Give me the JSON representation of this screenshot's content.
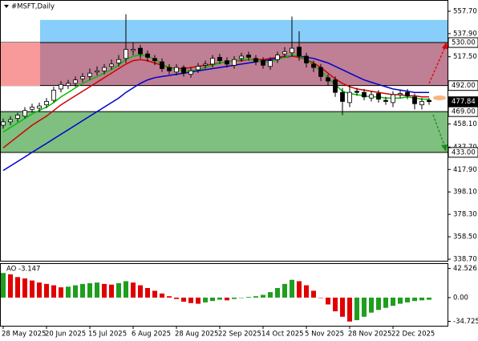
{
  "chart_data": {
    "type": "candlestick",
    "title": "#MSFT,Daily",
    "categories": [
      "28 May 2025",
      null,
      null,
      null,
      null,
      null,
      "20 Jun 2025",
      null,
      null,
      null,
      null,
      null,
      "15 Jul 2025",
      null,
      null,
      null,
      null,
      null,
      "6 Aug 2025",
      null,
      null,
      null,
      null,
      null,
      "28 Aug 2025",
      null,
      null,
      null,
      null,
      null,
      "22 Sep 2025",
      null,
      null,
      null,
      null,
      null,
      "14 Oct 2025",
      null,
      null,
      null,
      null,
      null,
      "5 Nov 2025",
      null,
      null,
      null,
      null,
      null,
      "28 Nov 2025",
      null,
      null,
      null,
      null,
      null,
      "22 Dec 2025",
      null,
      null,
      null,
      null,
      null
    ],
    "open": [
      457,
      460,
      463,
      465,
      471,
      472,
      475,
      479,
      489,
      492,
      494,
      498,
      500,
      504,
      505,
      509,
      512,
      516,
      523,
      525,
      520,
      516,
      513,
      508,
      504,
      508,
      502,
      506,
      510,
      511,
      517,
      514,
      510,
      516,
      519,
      516,
      514,
      509,
      515,
      520,
      521,
      526,
      518,
      511,
      508,
      499,
      497,
      486,
      477,
      487,
      486,
      481,
      485,
      479,
      477,
      484,
      486,
      482,
      475,
      479
    ],
    "high": [
      463,
      465,
      468,
      473,
      476,
      477,
      481,
      491,
      496,
      497,
      500,
      503,
      507,
      509,
      511,
      515,
      519,
      555,
      530,
      528,
      523,
      519,
      516,
      511,
      511,
      510,
      508,
      512,
      514,
      519,
      520,
      517,
      518,
      521,
      522,
      519,
      517,
      517,
      522,
      526,
      553,
      540,
      521,
      514,
      511,
      502,
      500,
      490,
      492,
      490,
      489,
      487,
      488,
      482,
      487,
      488,
      489,
      485,
      481,
      481
    ],
    "low": [
      454,
      457,
      460,
      463,
      468,
      469,
      472,
      477,
      486,
      489,
      491,
      495,
      497,
      501,
      502,
      506,
      509,
      512,
      519,
      516,
      513,
      510,
      504,
      502,
      501,
      500,
      499,
      503,
      507,
      508,
      511,
      508,
      507,
      513,
      514,
      510,
      507,
      506,
      512,
      517,
      518,
      514,
      508,
      504,
      496,
      492,
      482,
      466,
      473,
      483,
      479,
      478,
      477,
      475,
      473,
      481,
      480,
      471,
      471,
      475
    ],
    "close": [
      460,
      462,
      466,
      470,
      473,
      474,
      478,
      488,
      493,
      494,
      497,
      500,
      503,
      505,
      508,
      511,
      515,
      524,
      524,
      520,
      517,
      514,
      507,
      505,
      508,
      503,
      505,
      509,
      511,
      516,
      514,
      511,
      515,
      518,
      517,
      513,
      510,
      514,
      519,
      522,
      525,
      518,
      512,
      508,
      500,
      496,
      486,
      478,
      486,
      486,
      482,
      484,
      480,
      478,
      484,
      485,
      483,
      476,
      478,
      477.84
    ],
    "up_color": "#ffffff",
    "down_color": "#000000",
    "moving_averages": [
      {
        "color": "#0000cc",
        "values": [
          417,
          421,
          425,
          429,
          433,
          437,
          441,
          445,
          449,
          453,
          457,
          461,
          465,
          469,
          473,
          477,
          481,
          486,
          490,
          494,
          497,
          499,
          500,
          501,
          502,
          503,
          504,
          505,
          506,
          507,
          508,
          509,
          510,
          511,
          512,
          513,
          514,
          515,
          516,
          517,
          518,
          518,
          517,
          516,
          514,
          512,
          509,
          506,
          503,
          500,
          497,
          495,
          493,
          491,
          489,
          488,
          487,
          486,
          486,
          486
        ]
      },
      {
        "color": "#d00000",
        "values": [
          437,
          442,
          447,
          452,
          457,
          461,
          465,
          470,
          475,
          479,
          483,
          487,
          491,
          495,
          499,
          503,
          507,
          511,
          514,
          515,
          514,
          512,
          510,
          508,
          507,
          507,
          508,
          509,
          510,
          511,
          512,
          513,
          514,
          514,
          515,
          515,
          515,
          516,
          517,
          518,
          518,
          517,
          515,
          512,
          508,
          503,
          498,
          494,
          491,
          489,
          488,
          487,
          486,
          485,
          484,
          484,
          483,
          483,
          482,
          482
        ]
      },
      {
        "color": "#00c000",
        "values": [
          451,
          455,
          459,
          463,
          467,
          470,
          473,
          477,
          482,
          486,
          490,
          494,
          497,
          500,
          503,
          506,
          510,
          515,
          518,
          519,
          518,
          515,
          511,
          508,
          506,
          505,
          505,
          506,
          508,
          510,
          512,
          513,
          514,
          515,
          515,
          514,
          513,
          513,
          515,
          517,
          519,
          518,
          515,
          510,
          505,
          499,
          493,
          487,
          485,
          484,
          483,
          482,
          482,
          481,
          481,
          481,
          482,
          481,
          480,
          480
        ]
      }
    ],
    "ylim": [
      337.3,
      567.6
    ],
    "yticks": [
      {
        "value": 557.7,
        "label": "557.70"
      },
      {
        "value": 537.9,
        "label": "537.90"
      },
      {
        "value": 517.5,
        "label": "517.50"
      },
      {
        "value": 458.1,
        "label": "458.10"
      },
      {
        "value": 437.7,
        "label": "437.70"
      },
      {
        "value": 417.9,
        "label": "417.90"
      },
      {
        "value": 398.1,
        "label": "398.10"
      },
      {
        "value": 378.3,
        "label": "378.30"
      },
      {
        "value": 358.5,
        "label": "358.50"
      },
      {
        "value": 338.7,
        "label": "338.70"
      }
    ],
    "levels": [
      {
        "value": 530,
        "label": "530.00"
      },
      {
        "value": 492,
        "label": "492.00"
      },
      {
        "value": 469,
        "label": "469.00"
      },
      {
        "value": 433,
        "label": "433.00"
      }
    ],
    "current_price": {
      "value": 477.84,
      "label": "477.84"
    },
    "zones": [
      {
        "from": 530,
        "to": 550,
        "color": "#87cefa"
      },
      {
        "from": 492,
        "to": 530,
        "color": "#bf7f94"
      },
      {
        "from": 433,
        "to": 469,
        "color": "#7fbf7f"
      }
    ],
    "indicator": {
      "type": "histogram",
      "title": "AO -3.147",
      "values": [
        36,
        34,
        30,
        28,
        25,
        22,
        20,
        18,
        15,
        16,
        18,
        20,
        21,
        22,
        20,
        19,
        21,
        24,
        22,
        18,
        14,
        10,
        6,
        2,
        -2,
        -6,
        -8,
        -9,
        -7,
        -5,
        -3,
        -4,
        -2,
        0,
        1,
        2,
        4,
        8,
        14,
        20,
        26,
        24,
        18,
        10,
        0,
        -10,
        -20,
        -28,
        -35,
        -33,
        -28,
        -22,
        -18,
        -15,
        -12,
        -9,
        -7,
        -5,
        -4,
        -3.147
      ],
      "up_color": "#1f9e1f",
      "down_color": "#e00000",
      "ylim": [
        -40,
        48
      ],
      "yticks": [
        42.526,
        {
          "value": 0,
          "label": "0.00"
        },
        -34.725
      ]
    }
  }
}
